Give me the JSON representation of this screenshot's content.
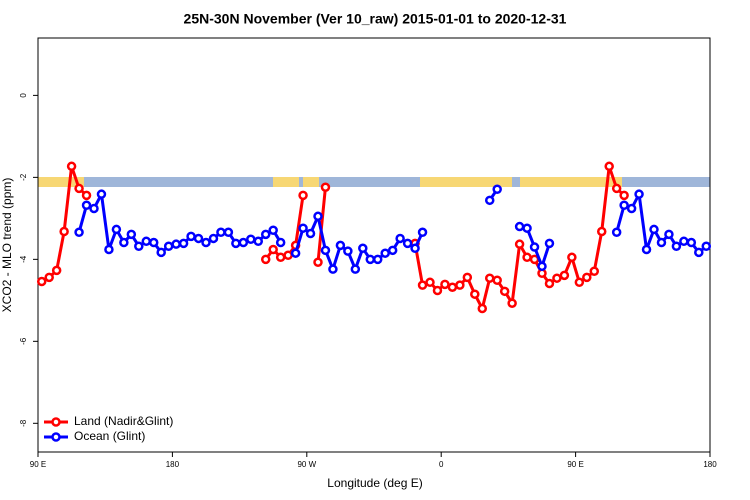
{
  "chart_data": {
    "type": "line",
    "title": "25N-30N November (Ver 10_raw)   2015-01-01 to 2020-12-31",
    "x_label": "Longitude (deg E)",
    "y_label": "XCO2 - MLO trend (ppm)",
    "xlim": [
      90,
      540
    ],
    "ylim": [
      -8.7,
      1.4
    ],
    "xticks": [
      {
        "value": 90,
        "label": "90 E"
      },
      180,
      {
        "value": 270,
        "label": "90 W"
      },
      {
        "value": 360,
        "label": "0"
      },
      {
        "value": 450,
        "label": "90 E"
      },
      {
        "value": 540,
        "label": "180"
      }
    ],
    "yticks": [
      -8,
      -6,
      -4,
      -2,
      0
    ],
    "legend": "bottom-left",
    "series": [
      {
        "name": "Land (Nadir&Glint)",
        "color": "#ff0000",
        "x": [
          92.5,
          97.5,
          102.5,
          107.5,
          112.5,
          117.5,
          122.5,
          127.5,
          242.5,
          247.5,
          252.5,
          257.5,
          262.5,
          267.5,
          272.5,
          277.5,
          282.5,
          287.5,
          342.5,
          347.5,
          352.5,
          357.5,
          362.5,
          367.5,
          372.5,
          377.5,
          382.5,
          387.5,
          392.5,
          397.5,
          402.5,
          407.5,
          412.5,
          417.5,
          422.5,
          427.5,
          432.5,
          437.5,
          442.5,
          447.5,
          452.5,
          457.5,
          462.5,
          467.5,
          472.5,
          477.5,
          482.5
        ],
        "values": [
          -4.54,
          -4.44,
          -4.27,
          -3.32,
          -1.73,
          -2.27,
          -2.44,
          null,
          -4.0,
          -3.76,
          -3.95,
          -3.9,
          -3.66,
          -2.44,
          null,
          -4.07,
          -2.24,
          null,
          -3.61,
          -4.63,
          -4.56,
          -4.76,
          -4.61,
          -4.68,
          -4.63,
          -4.44,
          -4.85,
          -5.2,
          -4.46,
          -4.51,
          -4.78,
          -5.07,
          -3.63,
          -3.95,
          -4.0,
          -4.34,
          -4.59,
          -4.46,
          -4.39,
          -3.95,
          -4.56,
          -4.44,
          -4.29,
          -3.32,
          -1.73,
          -2.27,
          -2.44
        ]
      },
      {
        "name": "Ocean (Glint)",
        "color": "#0000ff",
        "x": [
          117.5,
          122.5,
          127.5,
          132.5,
          137.5,
          142.5,
          147.5,
          152.5,
          157.5,
          162.5,
          167.5,
          172.5,
          177.5,
          182.5,
          187.5,
          192.5,
          197.5,
          202.5,
          207.5,
          212.5,
          217.5,
          222.5,
          227.5,
          232.5,
          237.5,
          242.5,
          247.5,
          252.5,
          257.5,
          262.5,
          267.5,
          272.5,
          277.5,
          282.5,
          287.5,
          292.5,
          297.5,
          302.5,
          307.5,
          312.5,
          317.5,
          322.5,
          327.5,
          332.5,
          337.5,
          342.5,
          347.5,
          352.5,
          392.5,
          397.5,
          402.5,
          412.5,
          417.5,
          422.5,
          427.5,
          432.5,
          437.5,
          477.5,
          482.5,
          487.5,
          492.5,
          497.5,
          502.5,
          507.5,
          512.5,
          517.5,
          522.5,
          527.5,
          532.5,
          537.5
        ],
        "values": [
          -3.34,
          -2.68,
          -2.76,
          -2.41,
          -3.76,
          -3.27,
          -3.59,
          -3.39,
          -3.68,
          -3.56,
          -3.59,
          -3.83,
          -3.68,
          -3.63,
          -3.61,
          -3.44,
          -3.49,
          -3.59,
          -3.49,
          -3.34,
          -3.34,
          -3.61,
          -3.59,
          -3.51,
          -3.56,
          -3.39,
          -3.29,
          -3.59,
          null,
          -3.85,
          -3.24,
          -3.37,
          -2.95,
          -3.78,
          -4.24,
          -3.66,
          -3.8,
          -4.24,
          -3.73,
          -4.0,
          -4.0,
          -3.85,
          -3.78,
          -3.49,
          -3.61,
          -3.73,
          -3.34,
          null,
          -2.56,
          -2.29,
          null,
          -3.2,
          -3.24,
          -3.7,
          -4.17,
          -3.61,
          null,
          -3.34,
          -2.68,
          -2.76,
          -2.41,
          -3.76,
          -3.27,
          -3.59,
          -3.39,
          -3.68,
          -3.56,
          -3.59,
          -3.83,
          -3.68
        ]
      }
    ]
  }
}
